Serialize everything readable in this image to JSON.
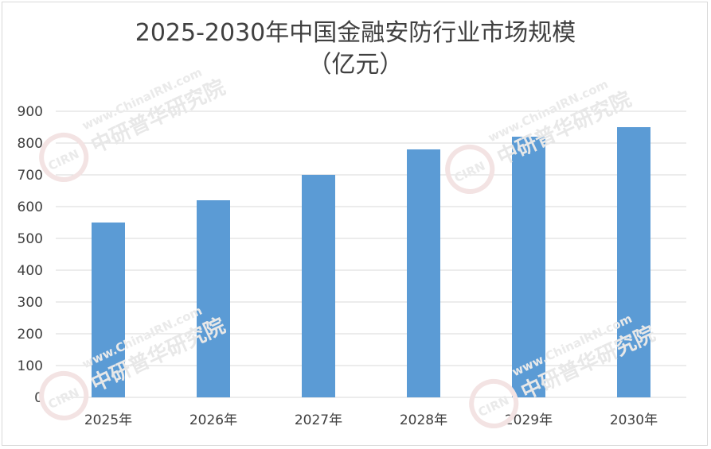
{
  "chart_data": {
    "type": "bar",
    "title_line1": "2025-2030年中国金融安防行业市场规模",
    "title_line2": "（亿元）",
    "categories": [
      "2025年",
      "2026年",
      "2027年",
      "2028年",
      "2029年",
      "2030年"
    ],
    "values": [
      550,
      620,
      700,
      780,
      820,
      850
    ],
    "ylim": [
      0,
      900
    ],
    "yticks": [
      0,
      100,
      200,
      300,
      400,
      500,
      600,
      700,
      800,
      900
    ],
    "grid": true,
    "bar_color": "#5b9bd5"
  },
  "watermark": {
    "url": "www.ChinaIRN.com",
    "org": "中研普华研究院",
    "badge": "CIRN"
  }
}
